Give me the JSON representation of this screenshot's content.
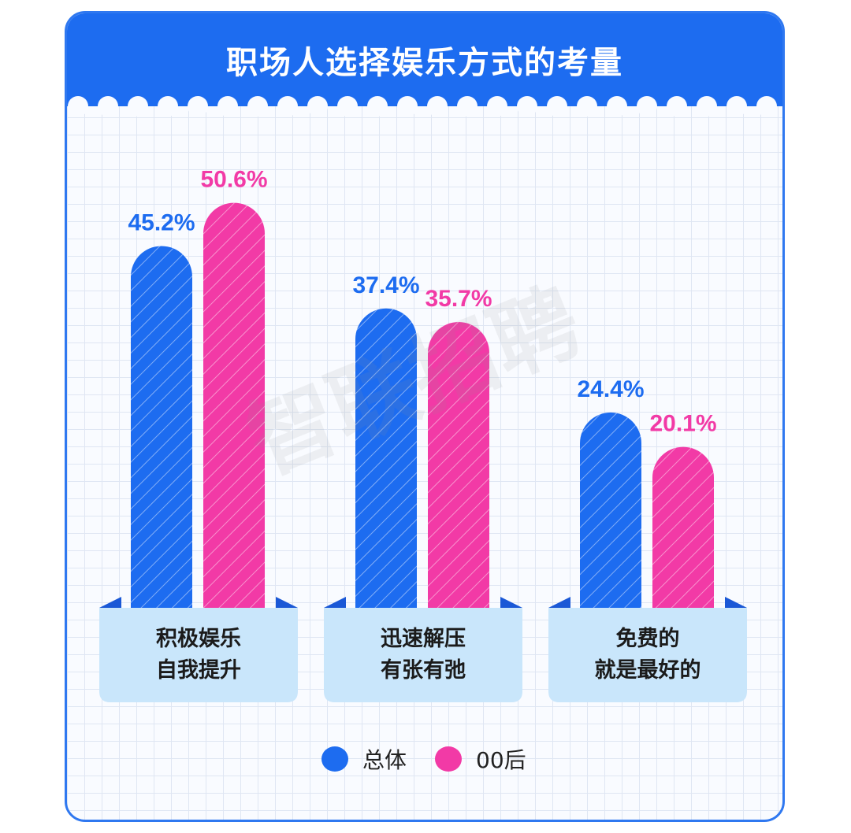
{
  "title": "职场人选择娱乐方式的考量",
  "colors": {
    "overall": "#1d6cf0",
    "gen00": "#f23aa6",
    "label_box": "#c9e6fb",
    "header": "#1d6cf0"
  },
  "legend": [
    {
      "name": "总体",
      "color": "#1d6cf0"
    },
    {
      "name": "00后",
      "color": "#f23aa6"
    }
  ],
  "watermark": "智联招聘",
  "chart_data": {
    "type": "bar",
    "title": "职场人选择娱乐方式的考量",
    "categories": [
      [
        "积极娱乐",
        "自我提升"
      ],
      [
        "迅速解压",
        "有张有弛"
      ],
      [
        "免费的",
        "就是最好的"
      ]
    ],
    "series": [
      {
        "name": "总体",
        "values": [
          45.2,
          37.4,
          24.4
        ],
        "labels": [
          "45.2%",
          "37.4%",
          "24.4%"
        ]
      },
      {
        "name": "00后",
        "values": [
          50.6,
          35.7,
          20.1
        ],
        "labels": [
          "50.6%",
          "35.7%",
          "20.1%"
        ]
      }
    ],
    "ylim": [
      0,
      60
    ],
    "legend_position": "bottom",
    "grid": true
  }
}
